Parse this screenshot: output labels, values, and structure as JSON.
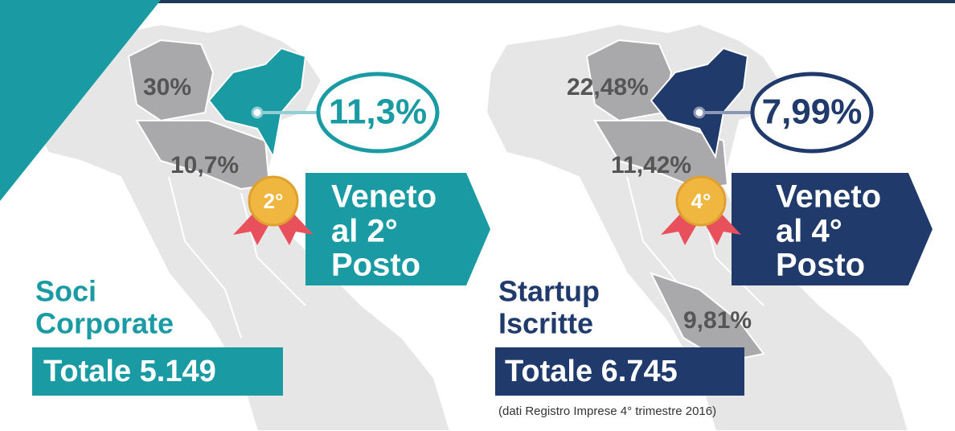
{
  "panels": [
    {
      "title": [
        "Soci",
        "Corporate"
      ],
      "total": "Totale 5.149",
      "highlight": "11,3%",
      "medal": "2°",
      "banner": [
        "Veneto",
        "al 2°",
        "Posto"
      ],
      "percentages": [
        "30%",
        "10,7%"
      ]
    },
    {
      "title": [
        "Startup",
        "Iscritte"
      ],
      "total": "Totale 6.745",
      "highlight": "7,99%",
      "medal": "4°",
      "banner": [
        "Veneto",
        "al 4°",
        "Posto"
      ],
      "percentages": [
        "22,48%",
        "11,42%",
        "9,81%"
      ]
    }
  ],
  "footnote": "(dati Registro Imprese 4° trimestre 2016)"
}
